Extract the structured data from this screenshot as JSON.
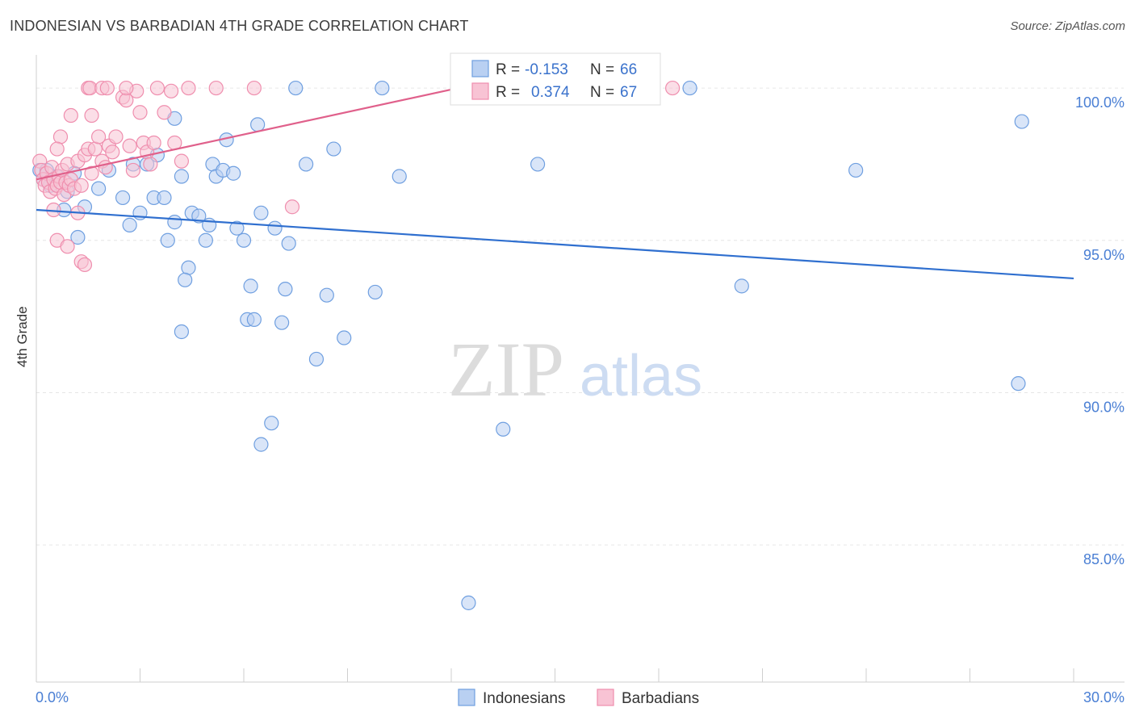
{
  "chart_data": {
    "type": "scatter",
    "title": "INDONESIAN VS BARBADIAN 4TH GRADE CORRELATION CHART",
    "source": "Source: ZipAtlas.com",
    "xlabel": "",
    "ylabel": "4th Grade",
    "xlim": [
      0,
      30
    ],
    "ylim": [
      80.5,
      101.3
    ],
    "x_tick_labels": [
      "0.0%",
      "30.0%"
    ],
    "y_ticks": [
      85,
      90,
      95,
      100
    ],
    "y_tick_labels": [
      "85.0%",
      "90.0%",
      "95.0%",
      "100.0%"
    ],
    "watermark": {
      "part1": "ZIP",
      "part2": "atlas"
    },
    "stats": {
      "r_label": "R =",
      "n_label": "N =",
      "series": [
        {
          "name": "Indonesians",
          "r": "-0.153",
          "n": "66"
        },
        {
          "name": "Barbadians",
          "r": "0.374",
          "n": "67"
        }
      ]
    },
    "series": [
      {
        "name": "Indonesians",
        "color": "#6f9fe0",
        "fill": "#b9d0f2",
        "line_color": "#2f6fcf",
        "trend": [
          [
            0,
            96.0
          ],
          [
            30,
            93.75
          ]
        ],
        "points": [
          [
            7.5,
            100
          ],
          [
            10,
            100
          ],
          [
            18.9,
            100
          ],
          [
            0.1,
            97.3
          ],
          [
            0.2,
            97.0
          ],
          [
            0.3,
            97.3
          ],
          [
            0.4,
            96.8
          ],
          [
            0.6,
            97.1
          ],
          [
            0.9,
            96.6
          ],
          [
            1.1,
            97.2
          ],
          [
            1.4,
            96.1
          ],
          [
            1.8,
            96.7
          ],
          [
            2.1,
            97.3
          ],
          [
            2.5,
            96.4
          ],
          [
            2.7,
            95.5
          ],
          [
            2.8,
            97.5
          ],
          [
            3.0,
            95.9
          ],
          [
            3.2,
            97.5
          ],
          [
            3.4,
            96.4
          ],
          [
            3.5,
            97.8
          ],
          [
            3.7,
            96.4
          ],
          [
            3.8,
            95.0
          ],
          [
            4.0,
            95.6
          ],
          [
            4.2,
            97.1
          ],
          [
            4.4,
            94.1
          ],
          [
            4.5,
            95.9
          ],
          [
            4.7,
            95.8
          ],
          [
            4.3,
            93.7
          ],
          [
            4.0,
            99.0
          ],
          [
            4.9,
            95.0
          ],
          [
            5.0,
            95.5
          ],
          [
            5.1,
            97.5
          ],
          [
            5.2,
            97.1
          ],
          [
            5.4,
            97.3
          ],
          [
            5.5,
            98.3
          ],
          [
            5.7,
            97.2
          ],
          [
            5.8,
            95.4
          ],
          [
            6.0,
            95.0
          ],
          [
            6.1,
            92.4
          ],
          [
            6.2,
            93.5
          ],
          [
            6.5,
            95.9
          ],
          [
            6.4,
            98.8
          ],
          [
            6.3,
            92.4
          ],
          [
            6.5,
            88.3
          ],
          [
            6.8,
            89.0
          ],
          [
            6.9,
            95.4
          ],
          [
            7.1,
            92.3
          ],
          [
            7.2,
            93.4
          ],
          [
            7.3,
            94.9
          ],
          [
            7.8,
            97.5
          ],
          [
            8.1,
            91.1
          ],
          [
            8.4,
            93.2
          ],
          [
            8.6,
            98.0
          ],
          [
            8.9,
            91.8
          ],
          [
            9.8,
            93.3
          ],
          [
            10.5,
            97.1
          ],
          [
            12.5,
            83.1
          ],
          [
            13.5,
            88.8
          ],
          [
            14.5,
            97.5
          ],
          [
            20.4,
            93.5
          ],
          [
            23.7,
            97.3
          ],
          [
            28.5,
            98.9
          ],
          [
            28.4,
            90.3
          ],
          [
            1.2,
            95.1
          ],
          [
            0.8,
            96.0
          ],
          [
            4.2,
            92.0
          ]
        ]
      },
      {
        "name": "Barbadians",
        "color": "#ef8eae",
        "fill": "#f8c3d4",
        "line_color": "#e0608b",
        "trend": [
          [
            0,
            97.0
          ],
          [
            12.4,
            100.05
          ]
        ],
        "points": [
          [
            0.1,
            97.6
          ],
          [
            0.15,
            97.3
          ],
          [
            0.2,
            97.0
          ],
          [
            0.25,
            96.8
          ],
          [
            0.3,
            97.2
          ],
          [
            0.35,
            96.9
          ],
          [
            0.4,
            96.6
          ],
          [
            0.45,
            97.4
          ],
          [
            0.5,
            97.0
          ],
          [
            0.55,
            96.7
          ],
          [
            0.6,
            96.8
          ],
          [
            0.65,
            97.1
          ],
          [
            0.7,
            96.9
          ],
          [
            0.75,
            97.3
          ],
          [
            0.8,
            96.5
          ],
          [
            0.85,
            96.9
          ],
          [
            0.9,
            97.5
          ],
          [
            0.95,
            96.8
          ],
          [
            1.0,
            97.0
          ],
          [
            1.1,
            96.7
          ],
          [
            1.2,
            97.6
          ],
          [
            1.3,
            96.8
          ],
          [
            1.4,
            97.8
          ],
          [
            1.5,
            98.0
          ],
          [
            1.6,
            97.2
          ],
          [
            1.7,
            98.0
          ],
          [
            1.8,
            98.4
          ],
          [
            1.9,
            97.6
          ],
          [
            2.0,
            97.4
          ],
          [
            2.1,
            98.1
          ],
          [
            2.2,
            97.9
          ],
          [
            2.3,
            98.4
          ],
          [
            2.5,
            99.7
          ],
          [
            2.6,
            99.6
          ],
          [
            2.7,
            98.1
          ],
          [
            2.8,
            97.3
          ],
          [
            2.9,
            99.9
          ],
          [
            3.0,
            99.2
          ],
          [
            3.1,
            98.2
          ],
          [
            3.2,
            97.9
          ],
          [
            3.3,
            97.5
          ],
          [
            3.4,
            98.2
          ],
          [
            3.5,
            100
          ],
          [
            3.7,
            99.2
          ],
          [
            3.9,
            99.9
          ],
          [
            4.0,
            98.2
          ],
          [
            4.2,
            97.6
          ],
          [
            4.4,
            100
          ],
          [
            5.2,
            100
          ],
          [
            6.3,
            100
          ],
          [
            1.5,
            100
          ],
          [
            1.55,
            100
          ],
          [
            1.9,
            100
          ],
          [
            2.05,
            100
          ],
          [
            2.6,
            100
          ],
          [
            1.6,
            99.1
          ],
          [
            1.0,
            99.1
          ],
          [
            0.7,
            98.4
          ],
          [
            0.6,
            98.0
          ],
          [
            0.5,
            96.0
          ],
          [
            1.2,
            95.9
          ],
          [
            0.6,
            95.0
          ],
          [
            1.3,
            94.3
          ],
          [
            1.4,
            94.2
          ],
          [
            7.4,
            96.1
          ],
          [
            0.9,
            94.8
          ],
          [
            18.4,
            100
          ]
        ]
      }
    ]
  },
  "legend": {
    "items": [
      "Indonesians",
      "Barbadians"
    ]
  }
}
